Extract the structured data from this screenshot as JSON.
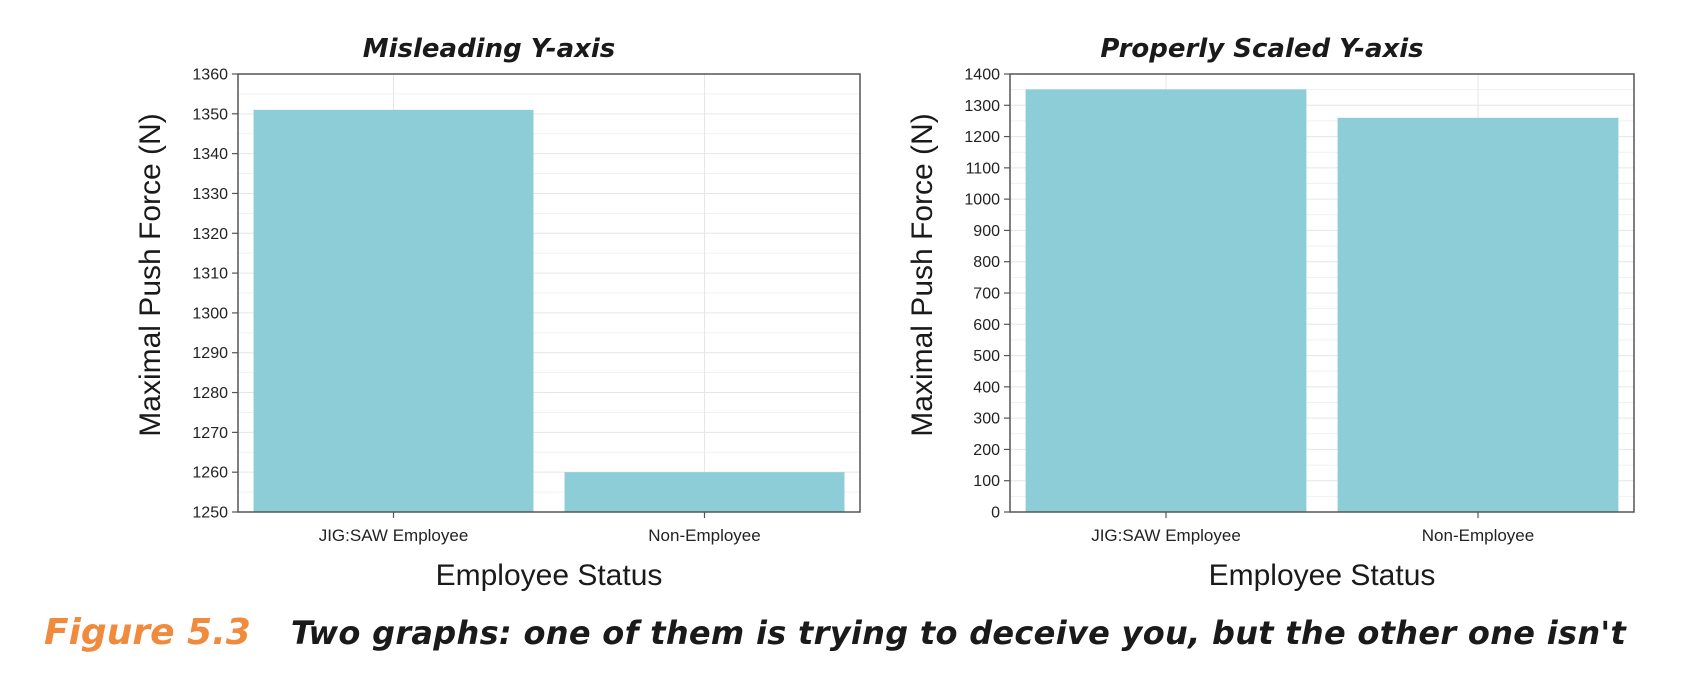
{
  "colors": {
    "bar": "#8ccdd8",
    "grid": "#e6e6e6",
    "axis": "#555555",
    "accent": "#f08a3c"
  },
  "chart_data": [
    {
      "type": "bar",
      "title": "Misleading Y-axis",
      "xlabel": "Employee Status",
      "ylabel": "Maximal Push Force (N)",
      "categories": [
        "JIG:SAW Employee",
        "Non-Employee"
      ],
      "values": [
        1351,
        1260
      ],
      "ylim": [
        1250,
        1360
      ],
      "yticks": [
        1250,
        1260,
        1270,
        1280,
        1290,
        1300,
        1310,
        1320,
        1330,
        1340,
        1350,
        1360
      ],
      "grid": true
    },
    {
      "type": "bar",
      "title": "Properly Scaled Y-axis",
      "xlabel": "Employee Status",
      "ylabel": "Maximal Push Force (N)",
      "categories": [
        "JIG:SAW Employee",
        "Non-Employee"
      ],
      "values": [
        1351,
        1260
      ],
      "ylim": [
        0,
        1400
      ],
      "yticks": [
        0,
        100,
        200,
        300,
        400,
        500,
        600,
        700,
        800,
        900,
        1000,
        1100,
        1200,
        1300,
        1400
      ],
      "grid": true
    }
  ],
  "caption": {
    "figure_number": "Figure 5.3",
    "text": "Two graphs: one of them is trying to deceive you, but the other one isn't"
  }
}
